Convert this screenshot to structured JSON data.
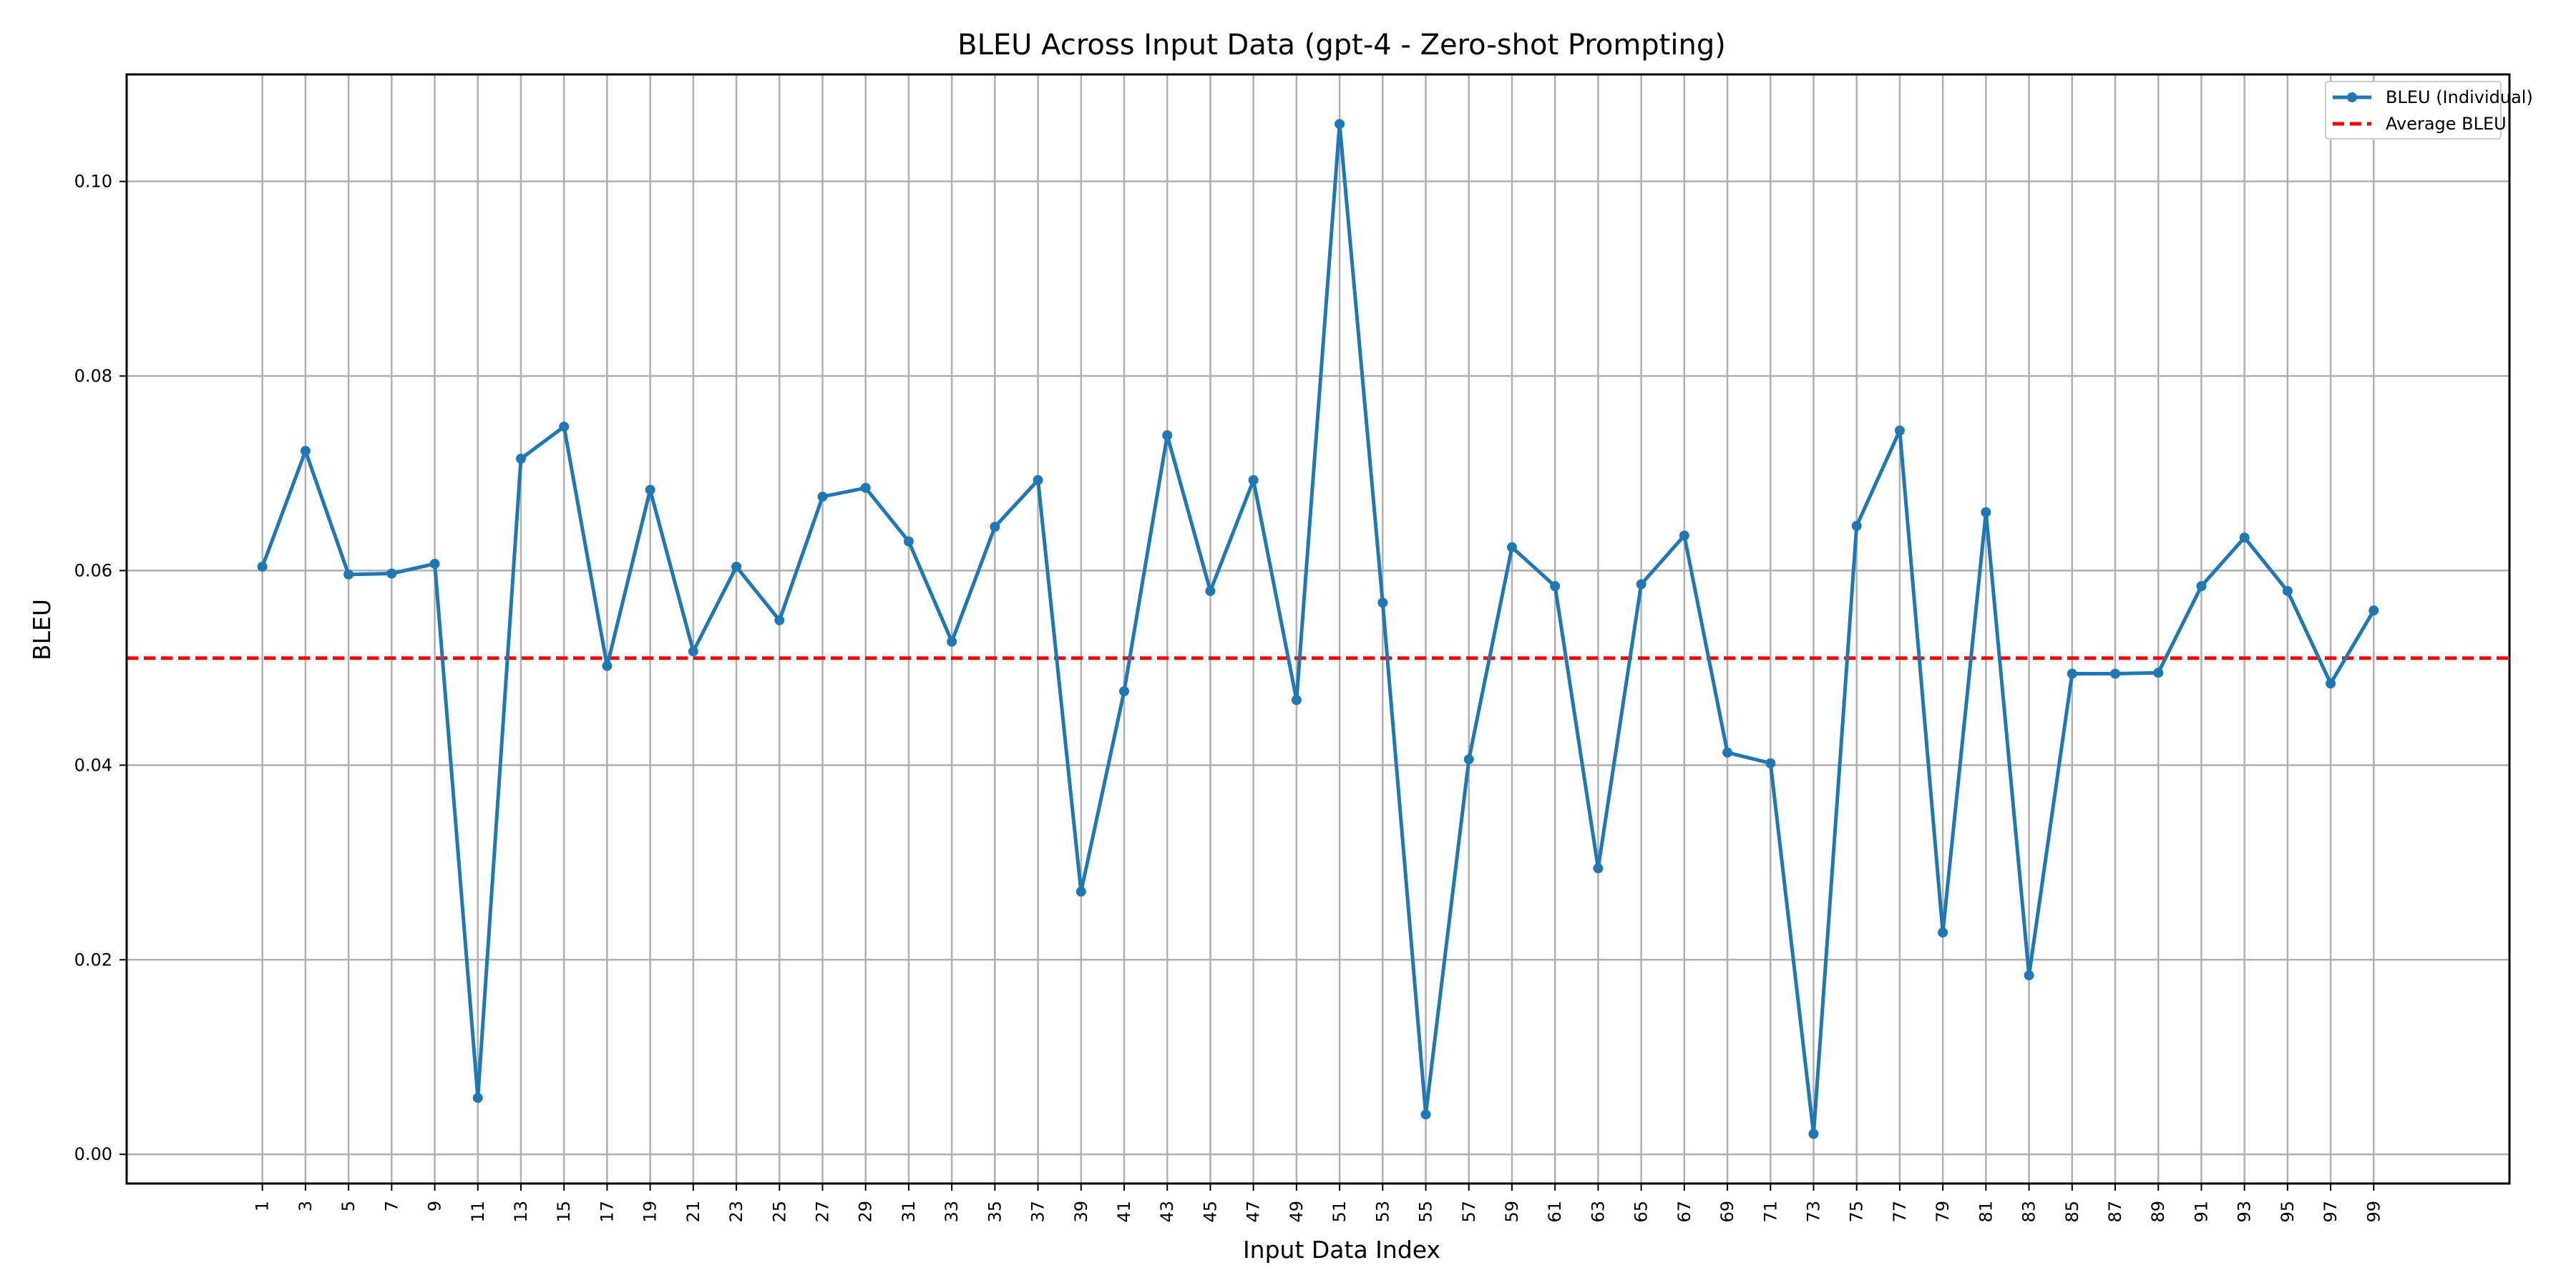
{
  "chart_data": {
    "type": "line",
    "title": "BLEU Across Input Data (gpt-4 - Zero-shot Prompting)",
    "xlabel": "Input Data Index",
    "ylabel": "BLEU",
    "x": [
      1,
      3,
      5,
      7,
      9,
      11,
      13,
      15,
      17,
      19,
      21,
      23,
      25,
      27,
      29,
      31,
      33,
      35,
      37,
      39,
      41,
      43,
      45,
      47,
      49,
      51,
      53,
      55,
      57,
      59,
      61,
      63,
      65,
      67,
      69,
      71,
      73,
      75,
      77,
      79,
      81,
      83,
      85,
      87,
      89,
      91,
      93,
      95,
      97,
      99
    ],
    "xticks": [
      "1",
      "3",
      "5",
      "7",
      "9",
      "11",
      "13",
      "15",
      "17",
      "19",
      "21",
      "23",
      "25",
      "27",
      "29",
      "31",
      "33",
      "35",
      "37",
      "39",
      "41",
      "43",
      "45",
      "47",
      "49",
      "51",
      "53",
      "55",
      "57",
      "59",
      "61",
      "63",
      "65",
      "67",
      "69",
      "71",
      "73",
      "75",
      "77",
      "79",
      "81",
      "83",
      "85",
      "87",
      "89",
      "91",
      "93",
      "95",
      "97",
      "99"
    ],
    "yticks": [
      "0.00",
      "0.02",
      "0.04",
      "0.06",
      "0.08",
      "0.10"
    ],
    "ytick_values": [
      0.0,
      0.02,
      0.04,
      0.06,
      0.08,
      0.1
    ],
    "ylim": [
      -0.003,
      0.111
    ],
    "grid": true,
    "legend_position": "top-right",
    "series": [
      {
        "name": "BLEU (Individual)",
        "color": "#1f77b4",
        "style": "solid-marker",
        "values": [
          0.0604,
          0.0723,
          0.0596,
          0.0597,
          0.0607,
          0.0058,
          0.0715,
          0.0748,
          0.0502,
          0.0683,
          0.0517,
          0.0604,
          0.0549,
          0.0676,
          0.0685,
          0.063,
          0.0527,
          0.0645,
          0.0693,
          0.027,
          0.0476,
          0.0739,
          0.0579,
          0.0693,
          0.0467,
          0.1059,
          0.0567,
          0.0041,
          0.0406,
          0.0624,
          0.0584,
          0.0294,
          0.0586,
          0.0636,
          0.0413,
          0.0402,
          0.0021,
          0.0646,
          0.0744,
          0.0228,
          0.066,
          0.0184,
          0.0494,
          0.0494,
          0.0495,
          0.0584,
          0.0634,
          0.0579,
          0.0484,
          0.0559
        ]
      },
      {
        "name": "Average BLEU",
        "color": "#ff0000",
        "style": "dashed",
        "value": 0.051
      }
    ]
  }
}
